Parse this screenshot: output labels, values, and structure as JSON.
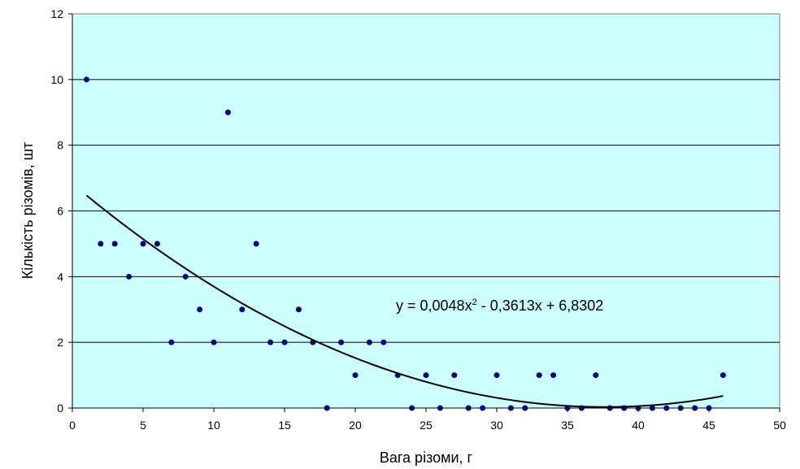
{
  "chart_data": {
    "type": "scatter",
    "xlabel": "Вага різоми, г",
    "ylabel": "Кількість різомів, шт",
    "xlim": [
      0,
      50
    ],
    "ylim": [
      0,
      12
    ],
    "x_ticks": [
      0,
      5,
      10,
      15,
      20,
      25,
      30,
      35,
      40,
      45,
      50
    ],
    "y_ticks": [
      0,
      2,
      4,
      6,
      8,
      10,
      12
    ],
    "grid": "horizontal",
    "colors": {
      "plot_background": "#ccffff",
      "marker": "#000080",
      "trendline": "#000000",
      "gridline": "#000000"
    },
    "series": [
      {
        "marker": "circle",
        "points": [
          [
            1,
            10
          ],
          [
            2,
            5
          ],
          [
            3,
            5
          ],
          [
            4,
            4
          ],
          [
            5,
            5
          ],
          [
            6,
            5
          ],
          [
            7,
            2
          ],
          [
            8,
            4
          ],
          [
            9,
            3
          ],
          [
            10,
            2
          ],
          [
            11,
            9
          ],
          [
            12,
            3
          ],
          [
            13,
            5
          ],
          [
            14,
            2
          ],
          [
            15,
            2
          ],
          [
            16,
            3
          ],
          [
            17,
            2
          ],
          [
            18,
            0
          ],
          [
            19,
            2
          ],
          [
            20,
            1
          ],
          [
            21,
            2
          ],
          [
            22,
            2
          ],
          [
            23,
            1
          ],
          [
            24,
            0
          ],
          [
            25,
            1
          ],
          [
            26,
            0
          ],
          [
            27,
            1
          ],
          [
            28,
            0
          ],
          [
            29,
            0
          ],
          [
            30,
            1
          ],
          [
            31,
            0
          ],
          [
            32,
            0
          ],
          [
            33,
            1
          ],
          [
            34,
            1
          ],
          [
            35,
            0
          ],
          [
            36,
            0
          ],
          [
            37,
            1
          ],
          [
            38,
            0
          ],
          [
            39,
            0
          ],
          [
            40,
            0
          ],
          [
            41,
            0
          ],
          [
            42,
            0
          ],
          [
            43,
            0
          ],
          [
            44,
            0
          ],
          [
            45,
            0
          ],
          [
            46,
            1
          ]
        ]
      }
    ],
    "trendline": {
      "type": "polynomial",
      "coefficients": [
        0.0048,
        -0.3613,
        6.8302
      ],
      "x_range": [
        1,
        46
      ],
      "label_main": "y = 0,0048x",
      "label_exp": "2",
      "label_tail": " - 0,3613x + 6,8302"
    }
  }
}
